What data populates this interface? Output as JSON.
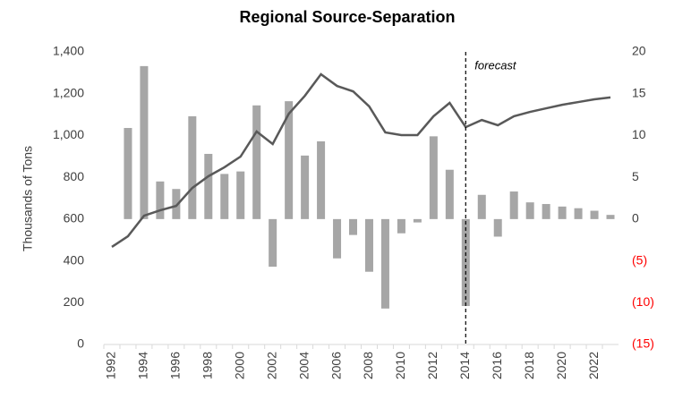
{
  "chart_data": {
    "type": "combo",
    "title": "Regional Source-Separation",
    "y_label": "Thousands of Tons",
    "categories": [
      "1992",
      null,
      "1994",
      null,
      "1996",
      null,
      "1998",
      null,
      "2000",
      null,
      "2002",
      null,
      "2004",
      null,
      "2006",
      null,
      "2008",
      null,
      "2010",
      null,
      "2012",
      null,
      "2014",
      null,
      "2016",
      null,
      "2018",
      null,
      "2020",
      null,
      "2022",
      null
    ],
    "series": [
      {
        "type": "bar",
        "axis": "y2",
        "color": "#a6a6a6",
        "values": [
          null,
          10.9,
          18.3,
          4.5,
          3.6,
          12.3,
          7.8,
          5.4,
          5.7,
          13.6,
          -5.7,
          14.1,
          7.6,
          9.3,
          -4.7,
          -1.9,
          -6.3,
          -10.7,
          -1.7,
          -0.4,
          9.9,
          5.9,
          -10.4,
          2.9,
          -2.1,
          3.3,
          2.0,
          1.8,
          1.5,
          1.3,
          1.0,
          0.5
        ]
      },
      {
        "type": "line",
        "color": "#595959",
        "values": [
          467,
          518,
          616,
          642,
          663,
          749,
          805,
          848,
          899,
          1019,
          959,
          1104,
          1190,
          1293,
          1237,
          1211,
          1139,
          1015,
          1002,
          1002,
          1092,
          1156,
          1040,
          1074,
          1049,
          1092,
          1113,
          1130,
          1147,
          1160,
          1173,
          1182
        ]
      }
    ],
    "ylim": [
      0,
      1400
    ],
    "yticks": [
      0,
      200,
      400,
      600,
      800,
      {
        "value": 1000,
        "label": "1,000"
      },
      {
        "value": 1200,
        "label": "1,200"
      },
      {
        "value": 1400,
        "label": "1,400"
      }
    ],
    "y2lim": [
      -15,
      20
    ],
    "y2ticks": [
      {
        "value": -15,
        "label": "(15)"
      },
      {
        "value": -10,
        "label": "(10)"
      },
      {
        "value": -5,
        "label": "(5)"
      },
      0,
      5,
      10,
      15,
      20
    ],
    "negative_tick_color": "#ff0000",
    "annotation": {
      "text": "forecast",
      "at": "2014"
    },
    "grid": false
  }
}
